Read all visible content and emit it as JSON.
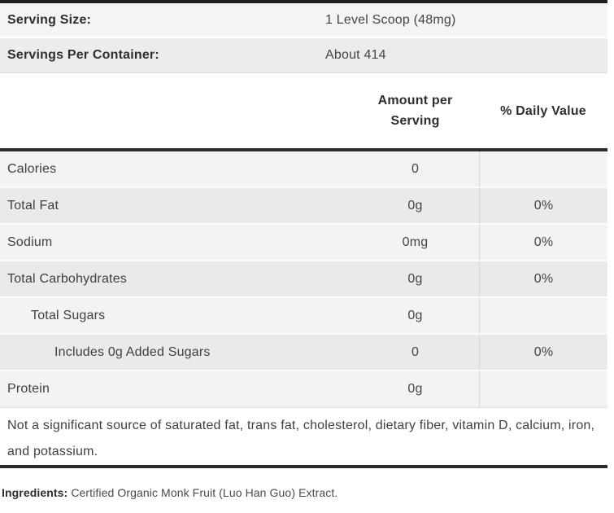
{
  "serving_info": {
    "rows": [
      {
        "label": "Serving Size:",
        "value": "1 Level Scoop (48mg)"
      },
      {
        "label": "Servings Per Container:",
        "value": "About 414"
      }
    ]
  },
  "table": {
    "header": {
      "amount_line1": "Amount per",
      "amount_line2": "Serving",
      "daily_value": "% Daily Value"
    },
    "rows": [
      {
        "label": "Calories",
        "amount": "0",
        "daily_value": "",
        "indent": 0
      },
      {
        "label": "Total Fat",
        "amount": "0g",
        "daily_value": "0%",
        "indent": 0
      },
      {
        "label": "Sodium",
        "amount": "0mg",
        "daily_value": "0%",
        "indent": 0
      },
      {
        "label": "Total Carbohydrates",
        "amount": "0g",
        "daily_value": "0%",
        "indent": 0
      },
      {
        "label": "Total Sugars",
        "amount": "0g",
        "daily_value": "",
        "indent": 1
      },
      {
        "label": "Includes 0g Added Sugars",
        "amount": "0",
        "daily_value": "0%",
        "indent": 2
      },
      {
        "label": "Protein",
        "amount": "0g",
        "daily_value": "",
        "indent": 0
      }
    ],
    "footnote": "Not a significant source of saturated fat, trans fat, cholesterol, dietary fiber, vitamin D, calcium, iron, and potassium."
  },
  "ingredients": {
    "label": "Ingredients:",
    "text": "Certified Organic Monk Fruit (Luo Han Guo) Extract."
  },
  "colors": {
    "rule_dark": "#2b2b2b",
    "row_light": "#f3f3f3",
    "row_dark": "#eaeaea",
    "divider_vertical": "#d6d6d6"
  }
}
